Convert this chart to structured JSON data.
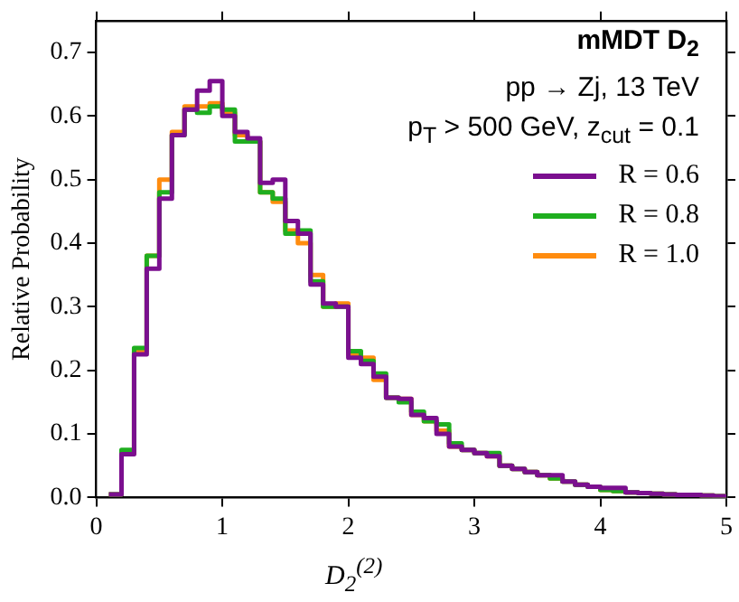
{
  "chart_data": {
    "type": "histogram",
    "title": "mMDT D$_{2}$",
    "subtitle": "pp → Zj, 13 TeV",
    "annotations": [
      "p$_{T}$ > 500 GeV, z$_{cut}$ = 0.1"
    ],
    "xlabel": "D$_{2}$$^{(2)}$",
    "ylabel": "Relative Probability",
    "bins": [
      0.1,
      0.2,
      0.3,
      0.4,
      0.5,
      0.6,
      0.7,
      0.8,
      0.9,
      1.0,
      1.1,
      1.2,
      1.3,
      1.4,
      1.5,
      1.6,
      1.7,
      1.8,
      1.9,
      2.0,
      2.1,
      2.2,
      2.3,
      2.4,
      2.5,
      2.6,
      2.7,
      2.8,
      2.9,
      3.0,
      3.1,
      3.2,
      3.3,
      3.4,
      3.5,
      3.6,
      3.7,
      3.8,
      3.9,
      4.0,
      4.1,
      4.2,
      4.3,
      4.4,
      4.5,
      4.6,
      4.7,
      4.8,
      4.9,
      5.0
    ],
    "series": [
      {
        "name": "R = 0.6",
        "color": "#7b0f8f",
        "values": [
          0.005,
          0.068,
          0.225,
          0.36,
          0.47,
          0.57,
          0.61,
          0.64,
          0.655,
          0.6,
          0.575,
          0.565,
          0.495,
          0.5,
          0.435,
          0.415,
          0.335,
          0.305,
          0.3,
          0.22,
          0.21,
          0.19,
          0.157,
          0.155,
          0.13,
          0.125,
          0.1,
          0.08,
          0.075,
          0.07,
          0.065,
          0.05,
          0.045,
          0.04,
          0.035,
          0.035,
          0.025,
          0.02,
          0.017,
          0.015,
          0.015,
          0.008,
          0.007,
          0.006,
          0.005,
          0.004,
          0.004,
          0.003,
          0.002
        ]
      },
      {
        "name": "R = 0.8",
        "color": "#1fae1f",
        "values": [
          0.005,
          0.075,
          0.235,
          0.38,
          0.48,
          0.57,
          0.61,
          0.605,
          0.615,
          0.61,
          0.56,
          0.56,
          0.48,
          0.47,
          0.415,
          0.42,
          0.34,
          0.3,
          0.3,
          0.23,
          0.215,
          0.195,
          0.157,
          0.15,
          0.135,
          0.12,
          0.115,
          0.085,
          0.075,
          0.07,
          0.07,
          0.05,
          0.045,
          0.04,
          0.035,
          0.03,
          0.025,
          0.02,
          0.017,
          0.012,
          0.01,
          0.008,
          0.007,
          0.006,
          0.005,
          0.004,
          0.004,
          0.003,
          0.002
        ]
      },
      {
        "name": "R = 1.0",
        "color": "#ff8c0f",
        "values": [
          0.005,
          0.07,
          0.23,
          0.38,
          0.5,
          0.575,
          0.615,
          0.615,
          0.62,
          0.605,
          0.57,
          0.56,
          0.48,
          0.465,
          0.42,
          0.4,
          0.35,
          0.3,
          0.305,
          0.225,
          0.22,
          0.185,
          0.157,
          0.155,
          0.13,
          0.12,
          0.105,
          0.08,
          0.075,
          0.07,
          0.065,
          0.05,
          0.045,
          0.04,
          0.035,
          0.03,
          0.025,
          0.02,
          0.017,
          0.012,
          0.01,
          0.008,
          0.007,
          0.006,
          0.005,
          0.004,
          0.004,
          0.003,
          0.002
        ]
      }
    ],
    "xlim": [
      0,
      5
    ],
    "xticks": [
      0,
      1,
      2,
      3,
      4,
      5
    ],
    "ylim": [
      0,
      0.75
    ],
    "yticks": [
      {
        "value": 0,
        "label": "0.0"
      },
      {
        "value": 0.1,
        "label": "0.1"
      },
      {
        "value": 0.2,
        "label": "0.2"
      },
      {
        "value": 0.3,
        "label": "0.3"
      },
      {
        "value": 0.4,
        "label": "0.4"
      },
      {
        "value": 0.5,
        "label": "0.5"
      },
      {
        "value": 0.6,
        "label": "0.6"
      },
      {
        "value": 0.7,
        "label": "0.7"
      }
    ],
    "grid": false,
    "legend": "top right"
  }
}
